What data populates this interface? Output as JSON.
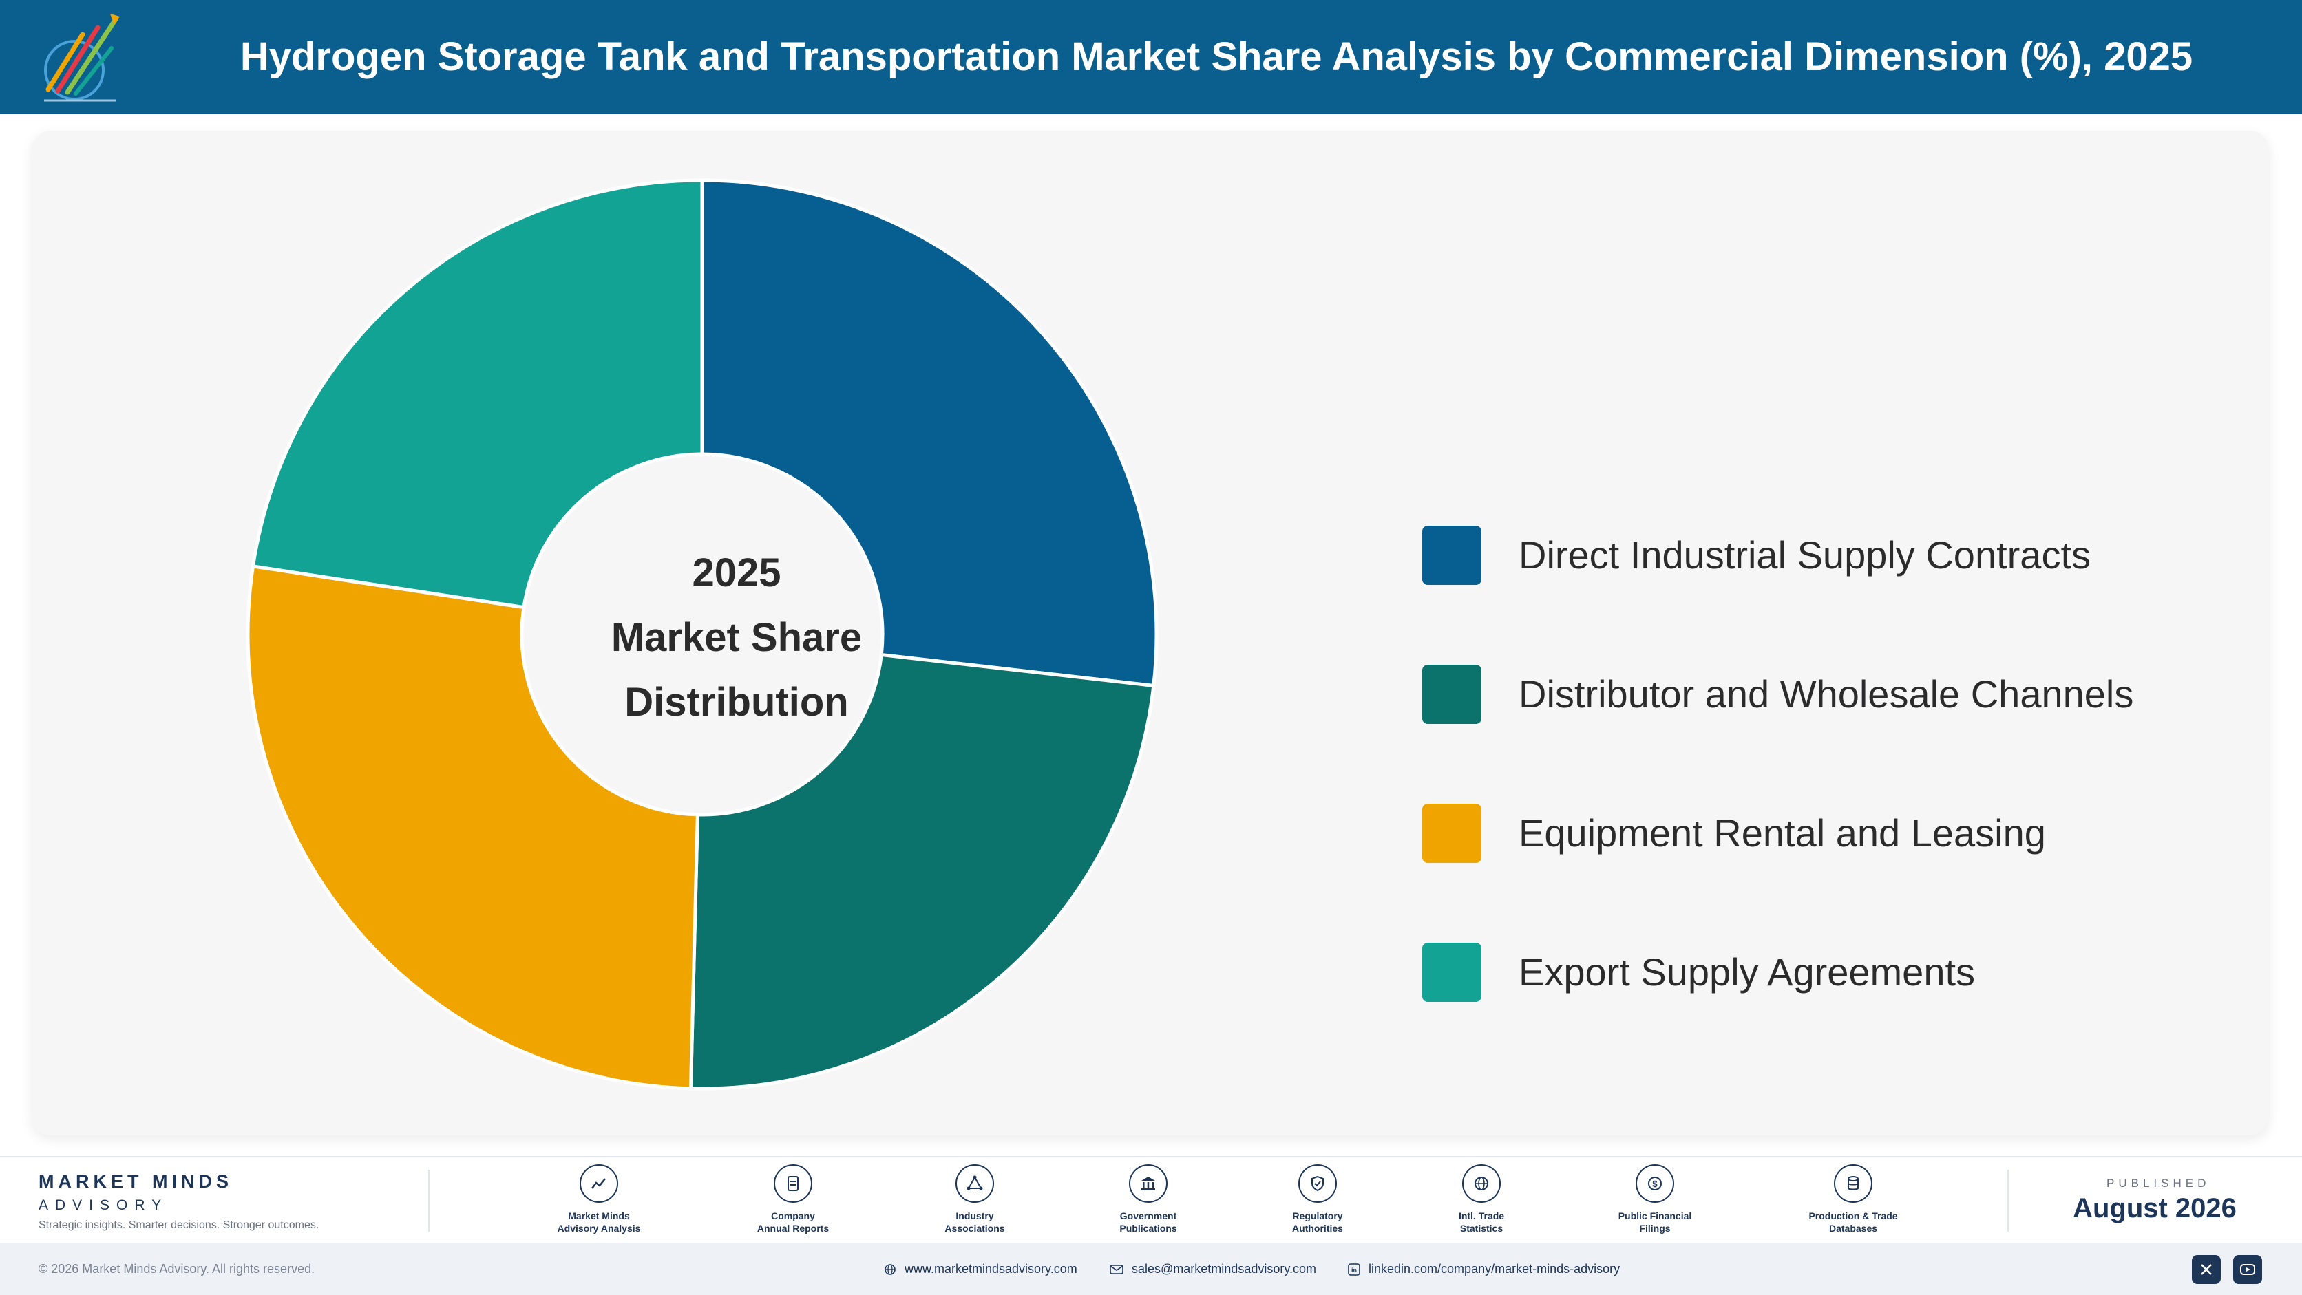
{
  "header": {
    "title": "Hydrogen Storage Tank and Transportation Market Share Analysis by Commercial Dimension (%), 2025"
  },
  "chart_data": {
    "type": "pie",
    "center_label": [
      "2025",
      "Market Share",
      "Distribution"
    ],
    "categories": [
      "Direct Industrial Supply Contracts",
      "Distributor and Wholesale Channels",
      "Equipment Rental and Leasing",
      "Export Supply Agreements"
    ],
    "values": [
      26.8,
      23.6,
      27.0,
      22.6
    ],
    "colors": [
      "#075f91",
      "#0c736c",
      "#f0a400",
      "#12a394"
    ],
    "legend_position": "right"
  },
  "footer": {
    "brand_name": "MARKET MINDS",
    "brand_sub": "ADVISORY",
    "tagline": "Strategic insights. Smarter decisions. Stronger outcomes.",
    "sources": [
      {
        "icon": "trend-chart-icon",
        "line1": "Market Minds",
        "line2": "Advisory Analysis"
      },
      {
        "icon": "document-icon",
        "line1": "Company",
        "line2": "Annual Reports"
      },
      {
        "icon": "network-icon",
        "line1": "Industry",
        "line2": "Associations"
      },
      {
        "icon": "bank-icon",
        "line1": "Government",
        "line2": "Publications"
      },
      {
        "icon": "shield-check-icon",
        "line1": "Regulatory",
        "line2": "Authorities"
      },
      {
        "icon": "globe-icon",
        "line1": "Intl. Trade",
        "line2": "Statistics"
      },
      {
        "icon": "dollar-coin-icon",
        "line1": "Public Financial",
        "line2": "Filings"
      },
      {
        "icon": "database-icon",
        "line1": "Production & Trade",
        "line2": "Databases"
      }
    ],
    "published_caption": "PUBLISHED",
    "published_date": "August 2026",
    "copyright": "© 2026 Market Minds Advisory. All rights reserved.",
    "website": "www.marketmindsadvisory.com",
    "email": "sales@marketmindsadvisory.com",
    "linkedin": "linkedin.com/company/market-minds-advisory"
  }
}
